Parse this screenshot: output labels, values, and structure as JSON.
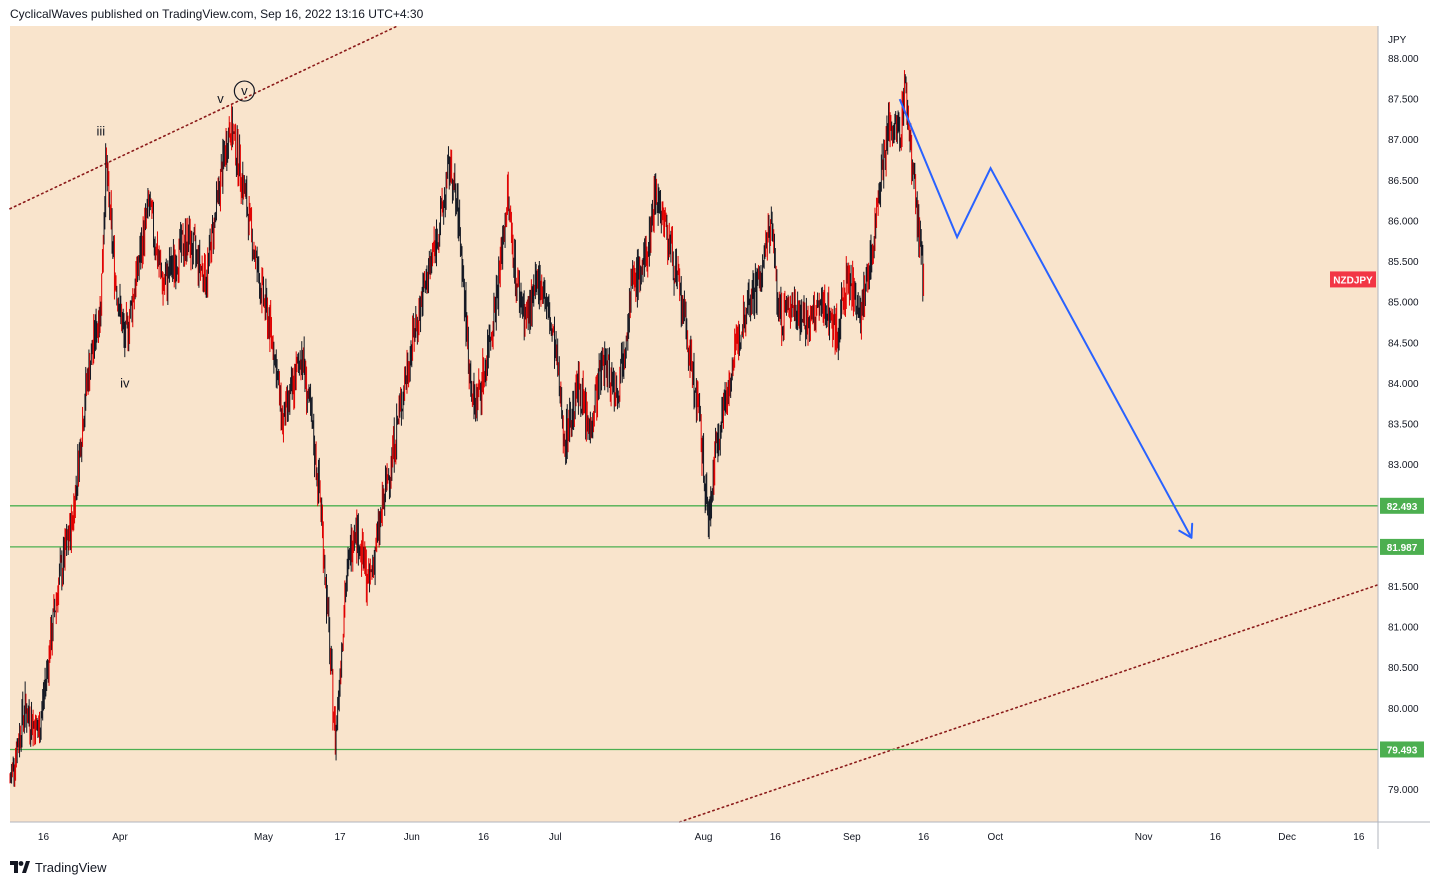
{
  "header": {
    "published_text": "CyclicalWaves published on TradingView.com, Sep 16, 2022 13:16 UTC+4:30"
  },
  "footer": {
    "brand": "TradingView",
    "logo_icon": "tradingview-logo-icon"
  },
  "colors": {
    "plot_bg": "#f9e4cc",
    "candle": "#131722",
    "wick_accent": "#e00000",
    "hline": "#4caf50",
    "forecast": "#2962ff",
    "channel": "#8b1a1a",
    "symbol_badge": "#f23645"
  },
  "chart_data": {
    "type": "candlestick",
    "symbol": "NZDJPY",
    "currency_label": "JPY",
    "y_ticks": [
      "88.000",
      "87.500",
      "87.000",
      "86.500",
      "86.000",
      "85.500",
      "85.000",
      "84.500",
      "84.000",
      "83.500",
      "83.000",
      "82.500",
      "82.000",
      "81.500",
      "81.000",
      "80.500",
      "80.000",
      "79.500",
      "79.000"
    ],
    "ylim": [
      78.6,
      88.4
    ],
    "x_ticks": [
      {
        "label": "16",
        "date": "2022-03-16"
      },
      {
        "label": "Apr",
        "date": "2022-04-01"
      },
      {
        "label": "May",
        "date": "2022-05-01"
      },
      {
        "label": "17",
        "date": "2022-05-17"
      },
      {
        "label": "Jun",
        "date": "2022-06-01"
      },
      {
        "label": "16",
        "date": "2022-06-16"
      },
      {
        "label": "Jul",
        "date": "2022-07-01"
      },
      {
        "label": "Aug",
        "date": "2022-08-01"
      },
      {
        "label": "16",
        "date": "2022-08-16"
      },
      {
        "label": "Sep",
        "date": "2022-09-01"
      },
      {
        "label": "16",
        "date": "2022-09-16"
      },
      {
        "label": "Oct",
        "date": "2022-10-01"
      },
      {
        "label": "Nov",
        "date": "2022-11-01"
      },
      {
        "label": "16",
        "date": "2022-11-16"
      },
      {
        "label": "Dec",
        "date": "2022-12-01"
      },
      {
        "label": "16",
        "date": "2022-12-16"
      }
    ],
    "xlim": [
      "2022-03-09",
      "2022-12-20"
    ],
    "price_path": [
      {
        "date": "2022-03-09",
        "price": 79.1
      },
      {
        "date": "2022-03-12",
        "price": 80.0
      },
      {
        "date": "2022-03-15",
        "price": 79.7
      },
      {
        "date": "2022-03-19",
        "price": 81.5
      },
      {
        "date": "2022-03-22",
        "price": 82.3
      },
      {
        "date": "2022-03-25",
        "price": 84.0
      },
      {
        "date": "2022-03-28",
        "price": 85.0
      },
      {
        "date": "2022-03-29",
        "price": 86.7
      },
      {
        "date": "2022-03-31",
        "price": 85.3
      },
      {
        "date": "2022-04-02",
        "price": 84.5
      },
      {
        "date": "2022-04-05",
        "price": 85.5
      },
      {
        "date": "2022-04-07",
        "price": 86.2
      },
      {
        "date": "2022-04-10",
        "price": 85.2
      },
      {
        "date": "2022-04-15",
        "price": 85.8
      },
      {
        "date": "2022-04-19",
        "price": 85.3
      },
      {
        "date": "2022-04-22",
        "price": 86.5
      },
      {
        "date": "2022-04-24",
        "price": 87.2
      },
      {
        "date": "2022-04-26",
        "price": 86.7
      },
      {
        "date": "2022-04-30",
        "price": 85.3
      },
      {
        "date": "2022-05-03",
        "price": 84.5
      },
      {
        "date": "2022-05-05",
        "price": 83.5
      },
      {
        "date": "2022-05-07",
        "price": 83.9
      },
      {
        "date": "2022-05-09",
        "price": 84.4
      },
      {
        "date": "2022-05-11",
        "price": 83.5
      },
      {
        "date": "2022-05-13",
        "price": 82.5
      },
      {
        "date": "2022-05-16",
        "price": 79.6
      },
      {
        "date": "2022-05-18",
        "price": 81.4
      },
      {
        "date": "2022-05-20",
        "price": 82.3
      },
      {
        "date": "2022-05-23",
        "price": 81.5
      },
      {
        "date": "2022-05-26",
        "price": 82.5
      },
      {
        "date": "2022-05-29",
        "price": 83.5
      },
      {
        "date": "2022-06-01",
        "price": 84.5
      },
      {
        "date": "2022-06-03",
        "price": 85.0
      },
      {
        "date": "2022-06-07",
        "price": 86.0
      },
      {
        "date": "2022-06-09",
        "price": 86.7
      },
      {
        "date": "2022-06-11",
        "price": 85.9
      },
      {
        "date": "2022-06-13",
        "price": 84.2
      },
      {
        "date": "2022-06-14",
        "price": 83.7
      },
      {
        "date": "2022-06-16",
        "price": 84.1
      },
      {
        "date": "2022-06-19",
        "price": 85.2
      },
      {
        "date": "2022-06-21",
        "price": 86.3
      },
      {
        "date": "2022-06-23",
        "price": 85.2
      },
      {
        "date": "2022-06-25",
        "price": 84.8
      },
      {
        "date": "2022-06-28",
        "price": 85.3
      },
      {
        "date": "2022-07-01",
        "price": 84.4
      },
      {
        "date": "2022-07-03",
        "price": 83.3
      },
      {
        "date": "2022-07-06",
        "price": 84.0
      },
      {
        "date": "2022-07-08",
        "price": 83.4
      },
      {
        "date": "2022-07-11",
        "price": 84.3
      },
      {
        "date": "2022-07-14",
        "price": 83.9
      },
      {
        "date": "2022-07-17",
        "price": 85.2
      },
      {
        "date": "2022-07-20",
        "price": 85.5
      },
      {
        "date": "2022-07-22",
        "price": 86.4
      },
      {
        "date": "2022-07-25",
        "price": 85.7
      },
      {
        "date": "2022-07-27",
        "price": 85.1
      },
      {
        "date": "2022-07-29",
        "price": 84.4
      },
      {
        "date": "2022-07-31",
        "price": 83.6
      },
      {
        "date": "2022-08-02",
        "price": 82.3
      },
      {
        "date": "2022-08-04",
        "price": 83.4
      },
      {
        "date": "2022-08-07",
        "price": 84.2
      },
      {
        "date": "2022-08-10",
        "price": 85.0
      },
      {
        "date": "2022-08-13",
        "price": 85.3
      },
      {
        "date": "2022-08-15",
        "price": 86.0
      },
      {
        "date": "2022-08-17",
        "price": 84.8
      },
      {
        "date": "2022-08-20",
        "price": 85.0
      },
      {
        "date": "2022-08-23",
        "price": 84.7
      },
      {
        "date": "2022-08-26",
        "price": 85.0
      },
      {
        "date": "2022-08-29",
        "price": 84.6
      },
      {
        "date": "2022-08-31",
        "price": 85.3
      },
      {
        "date": "2022-09-03",
        "price": 84.9
      },
      {
        "date": "2022-09-05",
        "price": 85.5
      },
      {
        "date": "2022-09-07",
        "price": 86.6
      },
      {
        "date": "2022-09-09",
        "price": 87.2
      },
      {
        "date": "2022-09-11",
        "price": 87.0
      },
      {
        "date": "2022-09-12",
        "price": 87.7
      },
      {
        "date": "2022-09-14",
        "price": 86.5
      },
      {
        "date": "2022-09-15",
        "price": 85.8
      },
      {
        "date": "2022-09-16",
        "price": 85.3
      }
    ],
    "horizontal_levels": [
      {
        "label": "82.493",
        "value": 82.493
      },
      {
        "label": "81.987",
        "value": 81.987
      },
      {
        "label": "79.493",
        "value": 79.493
      }
    ],
    "symbol_badge": {
      "label": "NZDJPY",
      "value": 85.28
    },
    "channel_upper": [
      {
        "date": "2022-03-09",
        "price": 86.15
      },
      {
        "date": "2022-05-29",
        "price": 88.4
      }
    ],
    "channel_lower": [
      {
        "date": "2022-07-27",
        "price": 78.6
      },
      {
        "date": "2022-12-20",
        "price": 81.52
      }
    ],
    "forecast_path": [
      {
        "date": "2022-09-11",
        "price": 87.5
      },
      {
        "date": "2022-09-23",
        "price": 85.8
      },
      {
        "date": "2022-09-30",
        "price": 86.65
      },
      {
        "date": "2022-11-11",
        "price": 82.1
      }
    ],
    "wave_labels": [
      {
        "text": "iii",
        "date": "2022-03-28",
        "price": 87.05,
        "circled": false
      },
      {
        "text": "iv",
        "date": "2022-04-02",
        "price": 83.95,
        "circled": false
      },
      {
        "text": "v",
        "date": "2022-04-22",
        "price": 87.45,
        "circled": false
      },
      {
        "text": "v",
        "date": "2022-04-27",
        "price": 87.55,
        "circled": true
      }
    ]
  }
}
